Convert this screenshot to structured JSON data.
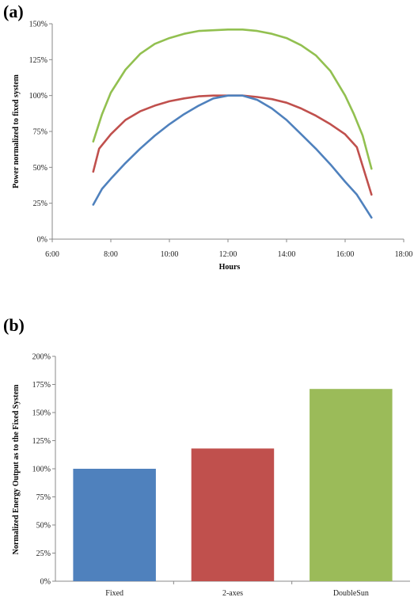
{
  "chart_data": [
    {
      "type": "line",
      "panel_label": "(a)",
      "xlabel": "Hours",
      "ylabel": "Power normalized to fixed system",
      "xlim": [
        6,
        18
      ],
      "ylim": [
        0,
        150
      ],
      "xtick_values": [
        6,
        8,
        10,
        12,
        14,
        16,
        18
      ],
      "xtick_labels": [
        "6:00",
        "8:00",
        "10:00",
        "12:00",
        "14:00",
        "16:00",
        "18:00"
      ],
      "ytick_values": [
        0,
        25,
        50,
        75,
        100,
        125,
        150
      ],
      "ytick_labels": [
        "0%",
        "25%",
        "50%",
        "75%",
        "100%",
        "125%",
        "150%"
      ],
      "grid": false,
      "series": [
        {
          "color": "#92c050",
          "x": [
            7.4,
            7.7,
            8.0,
            8.5,
            9.0,
            9.5,
            10.0,
            10.5,
            11.0,
            11.5,
            12.0,
            12.5,
            13.0,
            13.5,
            14.0,
            14.5,
            15.0,
            15.5,
            16.0,
            16.3,
            16.6,
            16.9
          ],
          "y": [
            68,
            87,
            102,
            118,
            129,
            136,
            140,
            143,
            145,
            145.5,
            146,
            146,
            145,
            143,
            140,
            135,
            128,
            117,
            100,
            87,
            72,
            49
          ]
        },
        {
          "color": "#c0504d",
          "x": [
            7.4,
            7.6,
            8.0,
            8.5,
            9.0,
            9.5,
            10.0,
            10.5,
            11.0,
            11.5,
            12.0,
            12.5,
            13.0,
            13.5,
            14.0,
            14.5,
            15.0,
            15.5,
            16.0,
            16.4,
            16.9
          ],
          "y": [
            47,
            63,
            73,
            83,
            89,
            93,
            96,
            98,
            99.5,
            100,
            100,
            100,
            99,
            97.5,
            95,
            91,
            86,
            80,
            73,
            64,
            31
          ]
        },
        {
          "color": "#4f81bd",
          "x": [
            7.4,
            7.7,
            8.0,
            8.5,
            9.0,
            9.5,
            10.0,
            10.5,
            11.0,
            11.5,
            12.0,
            12.5,
            13.0,
            13.5,
            14.0,
            14.5,
            15.0,
            15.5,
            16.0,
            16.4,
            16.9
          ],
          "y": [
            24,
            35,
            42,
            53,
            63,
            72,
            80,
            87,
            93,
            98,
            100,
            100,
            97,
            91,
            83,
            73,
            63,
            52,
            40,
            31,
            15
          ]
        }
      ]
    },
    {
      "type": "bar",
      "panel_label": "(b)",
      "xlabel": "",
      "ylabel": "Normalized Energy Output as to the Fixed System",
      "ylim": [
        0,
        200
      ],
      "ytick_values": [
        0,
        25,
        50,
        75,
        100,
        125,
        150,
        175,
        200
      ],
      "ytick_labels": [
        "0%",
        "25%",
        "50%",
        "75%",
        "100%",
        "125%",
        "150%",
        "175%",
        "200%"
      ],
      "grid": false,
      "categories": [
        "Fixed",
        "2-axes",
        "DoubleSun"
      ],
      "values": [
        100,
        118,
        171
      ],
      "colors": [
        "#4f81bd",
        "#c0504d",
        "#9bbb59"
      ]
    }
  ]
}
